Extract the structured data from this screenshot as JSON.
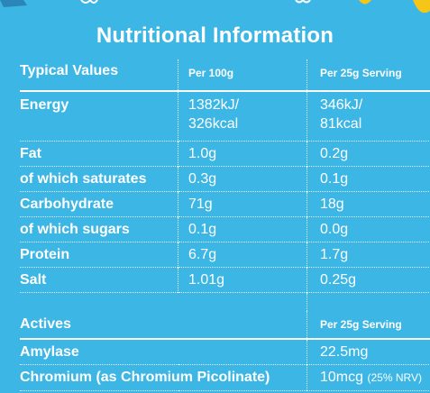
{
  "title": "Nutritional Information",
  "colors": {
    "background": "#3cb6e5",
    "text": "#ffffff"
  },
  "nutrition": {
    "headers": {
      "label": "Typical Values",
      "per100": "Per 100g",
      "per25": "Per 25g Serving"
    },
    "rows": [
      {
        "label": "Energy",
        "per100_line1": "1382kJ/",
        "per100_line2": "326kcal",
        "per25_line1": "346kJ/",
        "per25_line2": "81kcal"
      },
      {
        "label": "Fat",
        "per100": "1.0g",
        "per25": "0.2g"
      },
      {
        "label": "of which saturates",
        "per100": "0.3g",
        "per25": "0.1g"
      },
      {
        "label": "Carbohydrate",
        "per100": "71g",
        "per25": "18g"
      },
      {
        "label": "of which sugars",
        "per100": "0.1g",
        "per25": "0.0g"
      },
      {
        "label": "Protein",
        "per100": "6.7g",
        "per25": "1.7g"
      },
      {
        "label": "Salt",
        "per100": "1.01g",
        "per25": "0.25g"
      }
    ]
  },
  "actives": {
    "headers": {
      "label": "Actives",
      "per25": "Per 25g Serving"
    },
    "rows": [
      {
        "label": "Amylase",
        "value": "22.5mg",
        "note": ""
      },
      {
        "label": "Chromium (as Chromium Picolinate)",
        "value": "10mcg",
        "note": "(25% NRV)"
      }
    ]
  }
}
